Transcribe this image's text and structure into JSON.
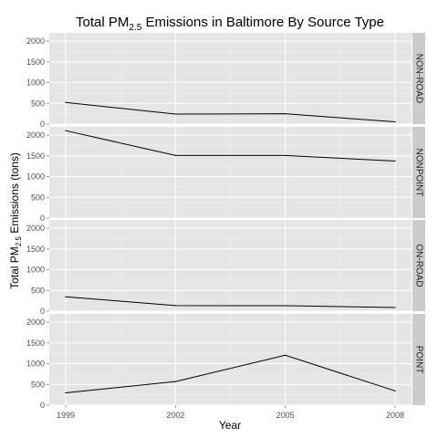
{
  "chart_data": {
    "type": "line",
    "title_prefix": "Total PM",
    "title_subscript": "2.5",
    "title_suffix": " Emissions in Baltimore By Source Type",
    "xlabel": "Year",
    "ylabel_prefix": "Total PM",
    "ylabel_subscript": "2.5",
    "ylabel_suffix": " Emissions (tons)",
    "x": [
      1999,
      2002,
      2005,
      2008
    ],
    "x_tick_labels": [
      "1999",
      "2002",
      "2005",
      "2008"
    ],
    "ylim": [
      0,
      2200
    ],
    "y_ticks": [
      0,
      500,
      1000,
      1500,
      2000
    ],
    "y_tick_labels": [
      "0",
      "500",
      "1000",
      "1500",
      "2000"
    ],
    "grid": true,
    "legend": "none",
    "line_color": "#000000",
    "panel_background": "#e5e5e5",
    "strip_background": "#cccccc",
    "grid_color": "#ffffff",
    "panels": [
      {
        "label": "NON-ROAD",
        "values": [
          522,
          241,
          249,
          55
        ]
      },
      {
        "label": "NONPOINT",
        "values": [
          2108,
          1510,
          1510,
          1374
        ]
      },
      {
        "label": "ON-ROAD",
        "values": [
          347,
          134,
          131,
          89
        ]
      },
      {
        "label": "POINT",
        "values": [
          297,
          570,
          1203,
          345
        ]
      }
    ]
  }
}
